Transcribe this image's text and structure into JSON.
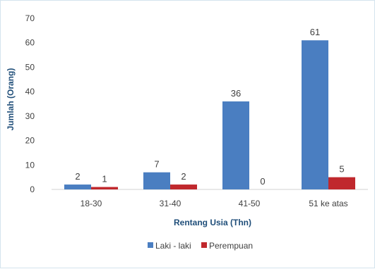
{
  "chart_data": {
    "type": "bar",
    "title": "",
    "xlabel": "Rentang Usia (Thn)",
    "ylabel": "Jumlah (Orang)",
    "ylim": [
      0,
      70
    ],
    "yticks": [
      "0",
      "10",
      "20",
      "30",
      "40",
      "50",
      "60",
      "70"
    ],
    "categories": [
      "18-30",
      "31-40",
      "41-50",
      "51 ke atas"
    ],
    "series": [
      {
        "name": "Laki - laki",
        "values": [
          2,
          7,
          36,
          61
        ],
        "labels": [
          "2",
          "7",
          "36",
          "61"
        ],
        "color": "#4a7ec1"
      },
      {
        "name": "Perempuan",
        "values": [
          1,
          2,
          0,
          5
        ],
        "labels": [
          "1",
          "2",
          "0",
          "5"
        ],
        "color": "#c0282d"
      }
    ],
    "grid": false,
    "legend": "bottom"
  }
}
